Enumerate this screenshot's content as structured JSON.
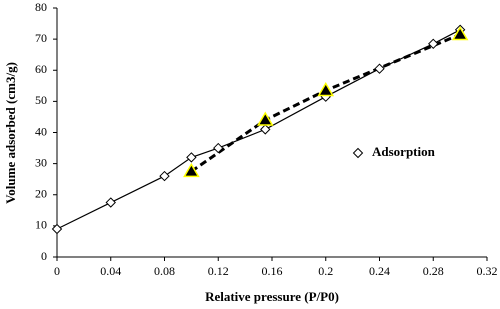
{
  "chart_data": {
    "type": "scatter",
    "x_label": "Relative pressure (P/P0)",
    "y_label": "Volume adsorbed (cm3/g)",
    "xlim": [
      0,
      0.32
    ],
    "xticks": [
      0,
      0.04,
      0.08,
      0.12,
      0.16,
      0.2,
      0.24,
      0.28,
      0.32
    ],
    "ylim": [
      0,
      80
    ],
    "yticks": [
      0,
      10,
      20,
      30,
      40,
      50,
      60,
      70,
      80
    ],
    "series": [
      {
        "name": "Adsorption",
        "marker": "diamond",
        "line": "solid",
        "color": "#000000",
        "fill": "#ffffff",
        "x": [
          0,
          0.04,
          0.08,
          0.1,
          0.12,
          0.155,
          0.2,
          0.24,
          0.28,
          0.3
        ],
        "values": [
          9,
          17.5,
          26,
          32,
          35,
          41,
          51.5,
          60.5,
          68.5,
          73
        ]
      },
      {
        "marker": "triangle",
        "line": "dashed",
        "color": "#000000",
        "fill": "#000000",
        "edge_color": "#ffff00",
        "x": [
          0.1,
          0.155,
          0.2,
          0.3
        ],
        "values": [
          27.5,
          44,
          53.5,
          71.5
        ]
      }
    ]
  }
}
